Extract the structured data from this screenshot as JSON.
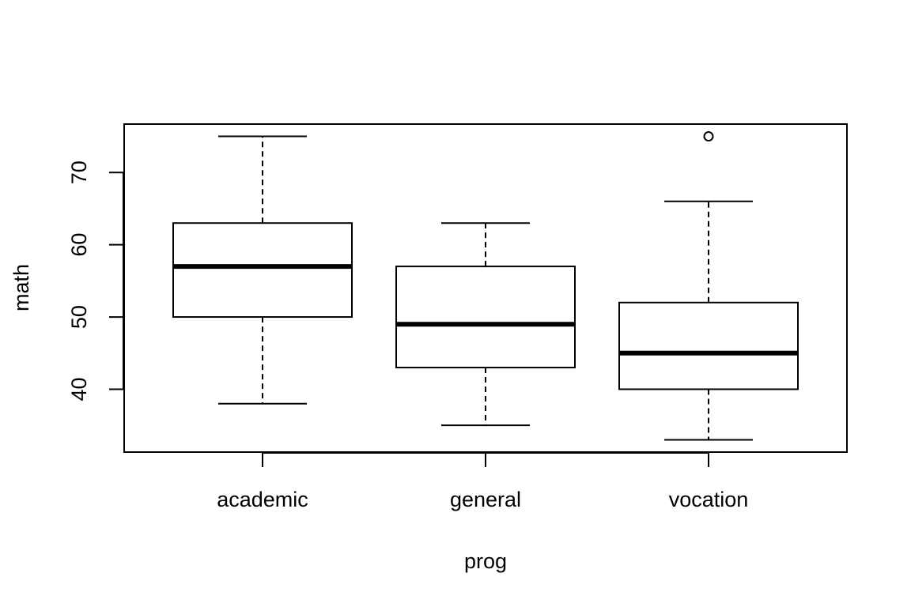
{
  "chart_data": {
    "type": "box",
    "title": "",
    "xlabel": "prog",
    "ylabel": "math",
    "ylim": [
      31.3,
      76.7
    ],
    "yticks": [
      40,
      50,
      60,
      70
    ],
    "categories": [
      "academic",
      "general",
      "vocation"
    ],
    "boxes": [
      {
        "name": "academic",
        "whisker_low": 38,
        "q1": 50,
        "median": 57,
        "q3": 63,
        "whisker_high": 75,
        "outliers": []
      },
      {
        "name": "general",
        "whisker_low": 35,
        "q1": 43,
        "median": 49,
        "q3": 57,
        "whisker_high": 63,
        "outliers": []
      },
      {
        "name": "vocation",
        "whisker_low": 33,
        "q1": 40,
        "median": 45,
        "q3": 52,
        "whisker_high": 66,
        "outliers": [
          75
        ]
      }
    ],
    "grid": false,
    "legend": "none"
  }
}
